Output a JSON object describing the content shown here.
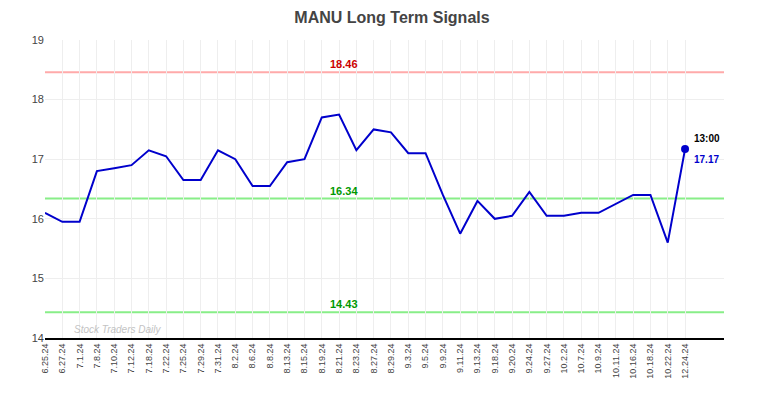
{
  "chart_data": {
    "type": "line",
    "title": "MANU Long Term Signals",
    "categories": [
      "6.25.24",
      "6.27.24",
      "7.1.24",
      "7.8.24",
      "7.10.24",
      "7.12.24",
      "7.18.24",
      "7.22.24",
      "7.25.24",
      "7.29.24",
      "7.31.24",
      "8.2.24",
      "8.6.24",
      "8.8.24",
      "8.13.24",
      "8.15.24",
      "8.19.24",
      "8.21.24",
      "8.23.24",
      "8.27.24",
      "8.29.24",
      "9.3.24",
      "9.5.24",
      "9.9.24",
      "9.11.24",
      "9.13.24",
      "9.18.24",
      "9.20.24",
      "9.24.24",
      "9.27.24",
      "10.2.24",
      "10.7.24",
      "10.9.24",
      "10.11.24",
      "10.16.24",
      "10.18.24",
      "10.22.24",
      "12.24.24"
    ],
    "values": [
      16.1,
      15.95,
      15.95,
      16.8,
      16.85,
      16.9,
      17.15,
      17.05,
      16.65,
      16.65,
      17.15,
      17.0,
      16.55,
      16.55,
      16.95,
      17.0,
      17.7,
      17.75,
      17.15,
      17.5,
      17.45,
      17.1,
      17.1,
      16.4,
      15.75,
      16.3,
      16.0,
      16.05,
      16.45,
      16.05,
      16.05,
      16.1,
      16.1,
      16.25,
      16.4,
      16.4,
      15.6,
      17.17
    ],
    "color": "#0000cc",
    "hlines": [
      {
        "value": 18.46,
        "label": "18.46",
        "color": "#ffaaaa",
        "label_color": "#cc0000"
      },
      {
        "value": 16.34,
        "label": "16.34",
        "color": "#88ee88",
        "label_color": "#009900"
      },
      {
        "value": 14.43,
        "label": "14.43",
        "color": "#88ee88",
        "label_color": "#009900"
      }
    ],
    "annotations": [
      {
        "category": "12.24.24",
        "value": 17.17,
        "text": "13:00",
        "color": "#000000",
        "marker": "circle"
      },
      {
        "category": "12.24.24",
        "value": 17.17,
        "text": "17.17",
        "color": "#0000cc"
      },
      {
        "text": "Stock Traders Daily",
        "color": "#aaaaaa"
      }
    ],
    "ylim": [
      14,
      19
    ],
    "yticks": [
      14,
      15,
      16,
      17,
      18,
      19
    ],
    "grid": true
  }
}
